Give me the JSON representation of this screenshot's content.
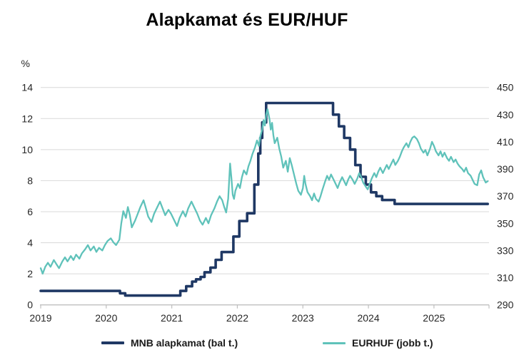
{
  "title": "Alapkamat és EUR/HUF",
  "colors": {
    "mnb_line": "#1F3864",
    "eurhuf_line": "#5FC2BA",
    "gridline": "#D9D9D9",
    "axis": "#BFBFBF",
    "tick_text": "#262626",
    "title_text": "#000000",
    "background": "#FFFFFF"
  },
  "chart_data": {
    "type": "line",
    "title": "Alapkamat és EUR/HUF",
    "grid": "horizontal",
    "legend_position": "bottom",
    "left_axis": {
      "label": "%",
      "range": [
        0,
        14
      ],
      "ticks": [
        0,
        2,
        4,
        6,
        8,
        10,
        12,
        14
      ]
    },
    "right_axis": {
      "label": "",
      "range": [
        290,
        450
      ],
      "ticks": [
        290,
        310,
        330,
        350,
        370,
        390,
        410,
        430,
        450
      ]
    },
    "x_axis": {
      "range": [
        2019.0,
        2025.84
      ],
      "ticks": [
        2019,
        2020,
        2021,
        2022,
        2023,
        2024,
        2025
      ]
    },
    "series": [
      {
        "name": "MNB alapkamat (bal t.)",
        "axis": "left",
        "color": "#1F3864",
        "step": true,
        "points": [
          [
            2019.0,
            0.9
          ],
          [
            2020.21,
            0.9
          ],
          [
            2020.21,
            0.75
          ],
          [
            2020.29,
            0.75
          ],
          [
            2020.29,
            0.6
          ],
          [
            2021.13,
            0.6
          ],
          [
            2021.13,
            0.9
          ],
          [
            2021.22,
            0.9
          ],
          [
            2021.22,
            1.2
          ],
          [
            2021.31,
            1.2
          ],
          [
            2021.31,
            1.5
          ],
          [
            2021.37,
            1.5
          ],
          [
            2021.37,
            1.65
          ],
          [
            2021.44,
            1.65
          ],
          [
            2021.44,
            1.8
          ],
          [
            2021.5,
            1.8
          ],
          [
            2021.5,
            2.1
          ],
          [
            2021.59,
            2.1
          ],
          [
            2021.59,
            2.4
          ],
          [
            2021.67,
            2.4
          ],
          [
            2021.67,
            2.9
          ],
          [
            2021.76,
            2.9
          ],
          [
            2021.76,
            3.4
          ],
          [
            2021.94,
            3.4
          ],
          [
            2021.94,
            4.4
          ],
          [
            2022.03,
            4.4
          ],
          [
            2022.03,
            5.4
          ],
          [
            2022.15,
            5.4
          ],
          [
            2022.15,
            5.9
          ],
          [
            2022.26,
            5.9
          ],
          [
            2022.26,
            7.75
          ],
          [
            2022.32,
            7.75
          ],
          [
            2022.32,
            9.75
          ],
          [
            2022.35,
            9.75
          ],
          [
            2022.35,
            10.75
          ],
          [
            2022.38,
            10.75
          ],
          [
            2022.38,
            11.75
          ],
          [
            2022.44,
            11.75
          ],
          [
            2022.44,
            13.0
          ],
          [
            2023.46,
            13.0
          ],
          [
            2023.46,
            12.25
          ],
          [
            2023.55,
            12.25
          ],
          [
            2023.55,
            11.5
          ],
          [
            2023.63,
            11.5
          ],
          [
            2023.63,
            10.75
          ],
          [
            2023.72,
            10.75
          ],
          [
            2023.72,
            10.0
          ],
          [
            2023.8,
            10.0
          ],
          [
            2023.8,
            9.0
          ],
          [
            2023.88,
            9.0
          ],
          [
            2023.88,
            8.25
          ],
          [
            2023.96,
            8.25
          ],
          [
            2023.96,
            7.75
          ],
          [
            2024.04,
            7.75
          ],
          [
            2024.04,
            7.25
          ],
          [
            2024.12,
            7.25
          ],
          [
            2024.12,
            7.0
          ],
          [
            2024.21,
            7.0
          ],
          [
            2024.21,
            6.75
          ],
          [
            2024.4,
            6.75
          ],
          [
            2024.4,
            6.5
          ],
          [
            2025.82,
            6.5
          ]
        ]
      },
      {
        "name": "EURHUF (jobb t.)",
        "axis": "right",
        "color": "#5FC2BA",
        "step": false,
        "points": [
          [
            2019.0,
            317
          ],
          [
            2019.03,
            313
          ],
          [
            2019.07,
            318
          ],
          [
            2019.11,
            321
          ],
          [
            2019.15,
            318
          ],
          [
            2019.2,
            323
          ],
          [
            2019.24,
            320
          ],
          [
            2019.28,
            317
          ],
          [
            2019.33,
            322
          ],
          [
            2019.37,
            325
          ],
          [
            2019.41,
            322
          ],
          [
            2019.46,
            326
          ],
          [
            2019.5,
            323
          ],
          [
            2019.54,
            327
          ],
          [
            2019.59,
            324
          ],
          [
            2019.63,
            328
          ],
          [
            2019.68,
            331
          ],
          [
            2019.72,
            334
          ],
          [
            2019.76,
            330
          ],
          [
            2019.81,
            333
          ],
          [
            2019.85,
            329
          ],
          [
            2019.89,
            332
          ],
          [
            2019.94,
            330
          ],
          [
            2019.98,
            334
          ],
          [
            2020.02,
            337
          ],
          [
            2020.07,
            339
          ],
          [
            2020.11,
            336
          ],
          [
            2020.15,
            334
          ],
          [
            2020.2,
            338
          ],
          [
            2020.23,
            350
          ],
          [
            2020.26,
            359
          ],
          [
            2020.3,
            354
          ],
          [
            2020.33,
            362
          ],
          [
            2020.36,
            356
          ],
          [
            2020.39,
            347
          ],
          [
            2020.44,
            352
          ],
          [
            2020.48,
            357
          ],
          [
            2020.52,
            362
          ],
          [
            2020.57,
            367
          ],
          [
            2020.6,
            362
          ],
          [
            2020.64,
            355
          ],
          [
            2020.69,
            351
          ],
          [
            2020.73,
            357
          ],
          [
            2020.78,
            362
          ],
          [
            2020.82,
            366
          ],
          [
            2020.86,
            361
          ],
          [
            2020.9,
            356
          ],
          [
            2020.95,
            360
          ],
          [
            2020.99,
            357
          ],
          [
            2021.04,
            352
          ],
          [
            2021.08,
            348
          ],
          [
            2021.12,
            354
          ],
          [
            2021.17,
            359
          ],
          [
            2021.21,
            355
          ],
          [
            2021.25,
            361
          ],
          [
            2021.3,
            366
          ],
          [
            2021.34,
            362
          ],
          [
            2021.39,
            357
          ],
          [
            2021.43,
            352
          ],
          [
            2021.47,
            349
          ],
          [
            2021.52,
            354
          ],
          [
            2021.56,
            350
          ],
          [
            2021.6,
            356
          ],
          [
            2021.65,
            361
          ],
          [
            2021.69,
            366
          ],
          [
            2021.73,
            370
          ],
          [
            2021.77,
            367
          ],
          [
            2021.8,
            362
          ],
          [
            2021.83,
            358
          ],
          [
            2021.86,
            368
          ],
          [
            2021.89,
            394
          ],
          [
            2021.91,
            383
          ],
          [
            2021.93,
            371
          ],
          [
            2021.95,
            368
          ],
          [
            2021.97,
            374
          ],
          [
            2022.01,
            379
          ],
          [
            2022.04,
            376
          ],
          [
            2022.07,
            384
          ],
          [
            2022.1,
            389
          ],
          [
            2022.14,
            386
          ],
          [
            2022.17,
            392
          ],
          [
            2022.2,
            396
          ],
          [
            2022.23,
            401
          ],
          [
            2022.27,
            406
          ],
          [
            2022.3,
            411
          ],
          [
            2022.33,
            407
          ],
          [
            2022.35,
            414
          ],
          [
            2022.38,
            419
          ],
          [
            2022.4,
            426
          ],
          [
            2022.42,
            422
          ],
          [
            2022.44,
            430
          ],
          [
            2022.46,
            434
          ],
          [
            2022.49,
            427
          ],
          [
            2022.51,
            419
          ],
          [
            2022.53,
            424
          ],
          [
            2022.55,
            415
          ],
          [
            2022.57,
            409
          ],
          [
            2022.61,
            413
          ],
          [
            2022.64,
            405
          ],
          [
            2022.67,
            399
          ],
          [
            2022.7,
            391
          ],
          [
            2022.74,
            396
          ],
          [
            2022.77,
            388
          ],
          [
            2022.8,
            398
          ],
          [
            2022.83,
            393
          ],
          [
            2022.87,
            385
          ],
          [
            2022.9,
            379
          ],
          [
            2022.93,
            374
          ],
          [
            2022.97,
            371
          ],
          [
            2023.0,
            376
          ],
          [
            2023.02,
            385
          ],
          [
            2023.04,
            379
          ],
          [
            2023.07,
            373
          ],
          [
            2023.11,
            370
          ],
          [
            2023.14,
            367
          ],
          [
            2023.17,
            372
          ],
          [
            2023.2,
            368
          ],
          [
            2023.24,
            366
          ],
          [
            2023.27,
            370
          ],
          [
            2023.3,
            375
          ],
          [
            2023.34,
            381
          ],
          [
            2023.37,
            385
          ],
          [
            2023.4,
            382
          ],
          [
            2023.43,
            386
          ],
          [
            2023.46,
            383
          ],
          [
            2023.5,
            379
          ],
          [
            2023.53,
            376
          ],
          [
            2023.56,
            380
          ],
          [
            2023.6,
            384
          ],
          [
            2023.63,
            381
          ],
          [
            2023.66,
            378
          ],
          [
            2023.69,
            382
          ],
          [
            2023.72,
            385
          ],
          [
            2023.76,
            382
          ],
          [
            2023.79,
            379
          ],
          [
            2023.83,
            383
          ],
          [
            2023.86,
            387
          ],
          [
            2023.89,
            384
          ],
          [
            2023.92,
            380
          ],
          [
            2023.96,
            377
          ],
          [
            2023.99,
            375
          ],
          [
            2024.02,
            379
          ],
          [
            2024.05,
            383
          ],
          [
            2024.09,
            387
          ],
          [
            2024.12,
            384
          ],
          [
            2024.15,
            388
          ],
          [
            2024.18,
            391
          ],
          [
            2024.22,
            387
          ],
          [
            2024.25,
            390
          ],
          [
            2024.28,
            393
          ],
          [
            2024.31,
            390
          ],
          [
            2024.35,
            394
          ],
          [
            2024.38,
            397
          ],
          [
            2024.41,
            393
          ],
          [
            2024.45,
            396
          ],
          [
            2024.48,
            399
          ],
          [
            2024.51,
            403
          ],
          [
            2024.54,
            406
          ],
          [
            2024.58,
            409
          ],
          [
            2024.61,
            406
          ],
          [
            2024.64,
            410
          ],
          [
            2024.67,
            413
          ],
          [
            2024.7,
            414
          ],
          [
            2024.74,
            412
          ],
          [
            2024.77,
            409
          ],
          [
            2024.8,
            405
          ],
          [
            2024.84,
            402
          ],
          [
            2024.87,
            404
          ],
          [
            2024.9,
            400
          ],
          [
            2024.94,
            405
          ],
          [
            2024.97,
            410
          ],
          [
            2025.0,
            407
          ],
          [
            2025.03,
            403
          ],
          [
            2025.07,
            400
          ],
          [
            2025.1,
            403
          ],
          [
            2025.13,
            399
          ],
          [
            2025.16,
            402
          ],
          [
            2025.2,
            398
          ],
          [
            2025.23,
            396
          ],
          [
            2025.26,
            399
          ],
          [
            2025.3,
            395
          ],
          [
            2025.33,
            397
          ],
          [
            2025.36,
            394
          ],
          [
            2025.39,
            392
          ],
          [
            2025.43,
            390
          ],
          [
            2025.46,
            388
          ],
          [
            2025.49,
            391
          ],
          [
            2025.52,
            387
          ],
          [
            2025.56,
            385
          ],
          [
            2025.59,
            382
          ],
          [
            2025.62,
            379
          ],
          [
            2025.66,
            378
          ],
          [
            2025.69,
            386
          ],
          [
            2025.72,
            389
          ],
          [
            2025.75,
            384
          ],
          [
            2025.79,
            380
          ],
          [
            2025.82,
            381
          ]
        ]
      }
    ]
  }
}
